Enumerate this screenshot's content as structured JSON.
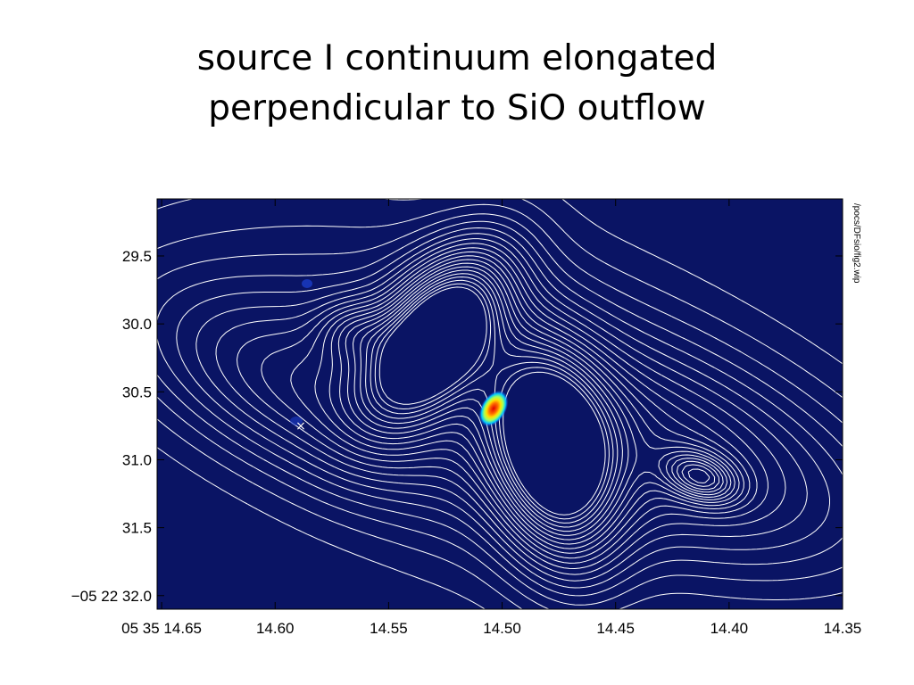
{
  "title": {
    "line1": "source I continuum elongated",
    "line2": "perpendicular to SiO outflow"
  },
  "figure": {
    "side_note": "/pocs/DFsio/fig2.wip",
    "background_color": "#0a1464",
    "contour_color": "#ffffff",
    "marker_symbol": "×",
    "x_ticks": [
      {
        "value": 14.65,
        "label": "05 35 14.65"
      },
      {
        "value": 14.6,
        "label": "14.60"
      },
      {
        "value": 14.55,
        "label": "14.55"
      },
      {
        "value": 14.5,
        "label": "14.50"
      },
      {
        "value": 14.45,
        "label": "14.45"
      },
      {
        "value": 14.4,
        "label": "14.40"
      },
      {
        "value": 14.35,
        "label": "14.35"
      }
    ],
    "y_ticks": [
      {
        "value": 29.5,
        "label": "29.5"
      },
      {
        "value": 30.0,
        "label": "30.0"
      },
      {
        "value": 30.5,
        "label": "30.5"
      },
      {
        "value": 31.0,
        "label": "31.0"
      },
      {
        "value": 31.5,
        "label": "31.5"
      },
      {
        "value": 32.0,
        "label": "−05 22 32.0"
      }
    ],
    "x_range": [
      14.652,
      14.35
    ],
    "y_range": [
      29.08,
      32.1
    ],
    "colormap": [
      "#0a1464",
      "#1a4cff",
      "#00c8ff",
      "#a0ff60",
      "#ffe000",
      "#ff7000",
      "#e00000"
    ]
  }
}
